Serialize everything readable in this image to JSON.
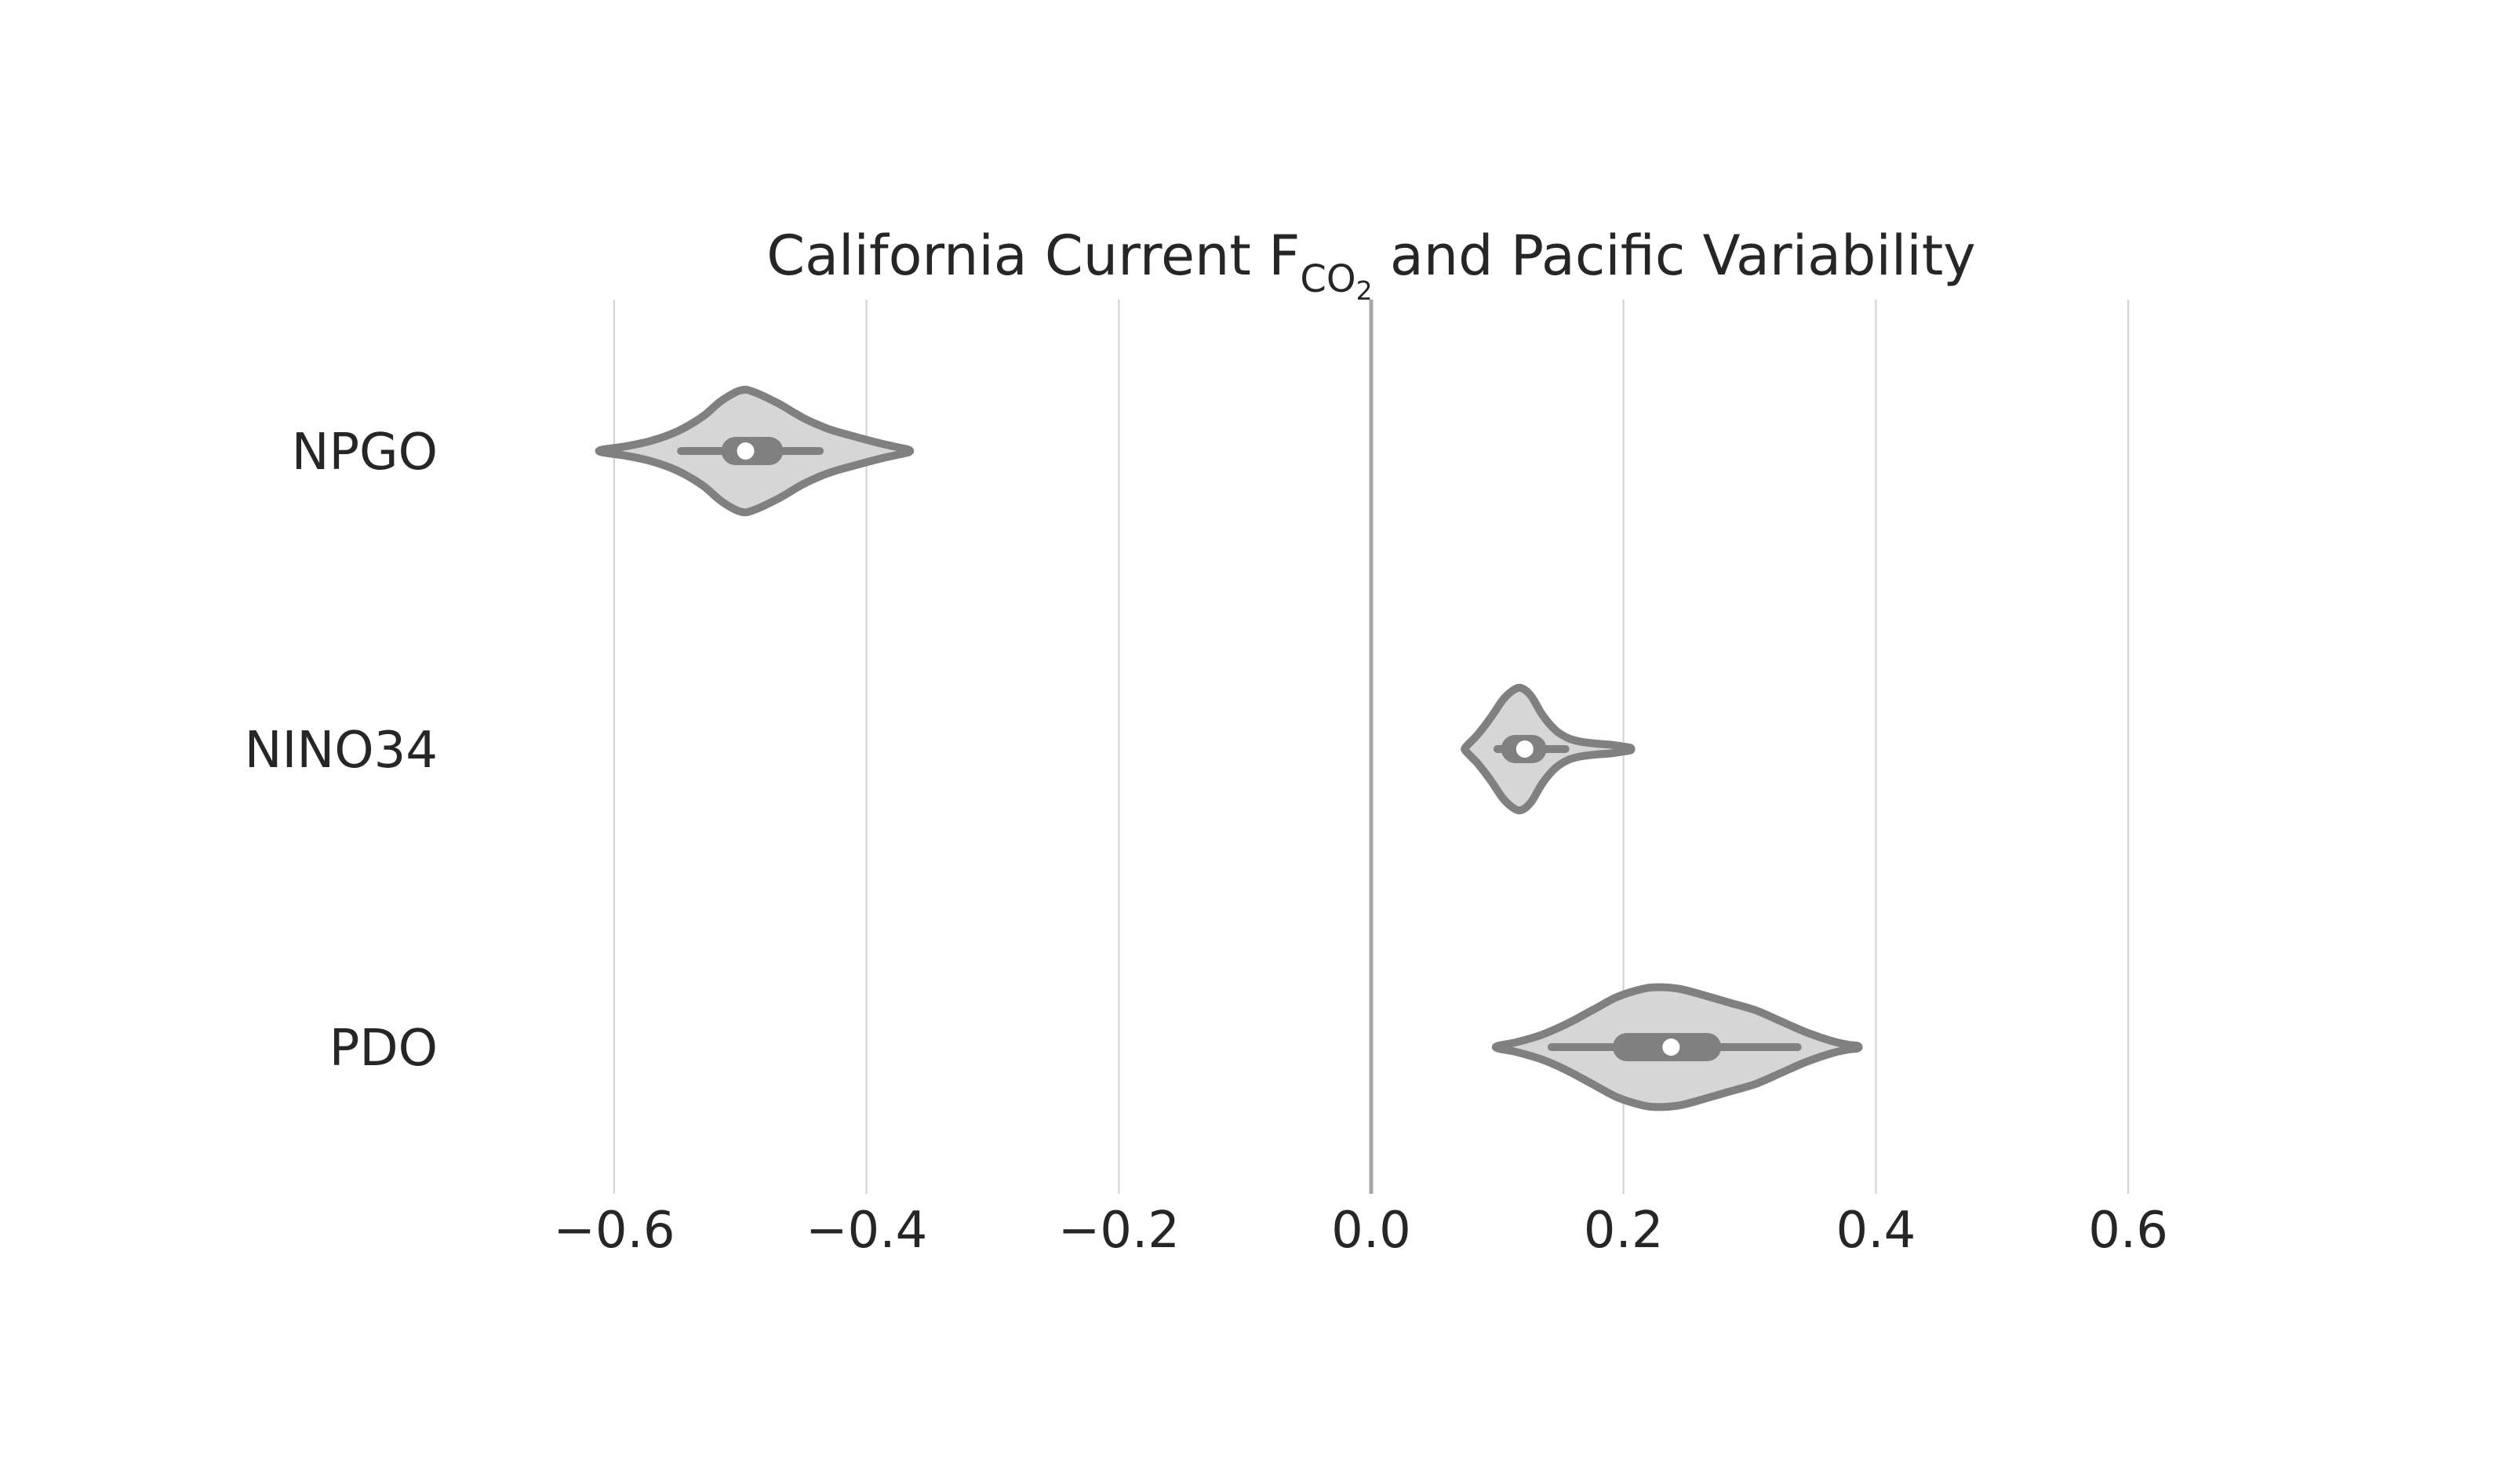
{
  "chart_data": {
    "type": "violin",
    "orientation": "horizontal",
    "title_parts": {
      "before": "California Current F",
      "subscript": "CO",
      "subsubscript": "2",
      "after": " and Pacific Variability"
    },
    "xlabel": "",
    "ylabel": "",
    "xlim": [
      -0.7,
      0.7
    ],
    "xticks": [
      -0.6,
      -0.4,
      -0.2,
      0.0,
      0.2,
      0.4,
      0.6
    ],
    "xtick_labels": [
      "−0.6",
      "−0.4",
      "−0.2",
      "0.0",
      "0.2",
      "0.4",
      "0.6"
    ],
    "grid": "vertical",
    "zero_line": 0.0,
    "colors": {
      "violin_fill": "#d6d6d6",
      "violin_edge": "#808080",
      "grid": "#d3d3d3",
      "zero_line": "#a6a6a6",
      "median_dot": "#ffffff",
      "text": "#262626"
    },
    "categories": [
      "NPGO",
      "NINO34",
      "PDO"
    ],
    "series": [
      {
        "category": "NPGO",
        "min": -0.6095,
        "max": -0.3665,
        "whisker_low": -0.547,
        "whisker_high": -0.437,
        "q1": -0.515,
        "median": -0.4958,
        "q3": -0.466,
        "max_density": 1.0,
        "density": [
          [
            -0.6095,
            0.02
          ],
          [
            -0.59,
            0.08
          ],
          [
            -0.57,
            0.17
          ],
          [
            -0.55,
            0.32
          ],
          [
            -0.53,
            0.56
          ],
          [
            -0.515,
            0.82
          ],
          [
            -0.5,
            0.99
          ],
          [
            -0.49,
            0.97
          ],
          [
            -0.47,
            0.78
          ],
          [
            -0.45,
            0.54
          ],
          [
            -0.43,
            0.36
          ],
          [
            -0.41,
            0.24
          ],
          [
            -0.39,
            0.13
          ],
          [
            -0.375,
            0.06
          ],
          [
            -0.3665,
            0.02
          ]
        ]
      },
      {
        "category": "NINO34",
        "min": 0.0745,
        "max": 0.2055,
        "whisker_low": 0.1,
        "whisker_high": 0.154,
        "q1": 0.103,
        "median": 0.1217,
        "q3": 0.139,
        "max_density": 1.0,
        "density": [
          [
            0.0745,
            0.02
          ],
          [
            0.078,
            0.1
          ],
          [
            0.085,
            0.25
          ],
          [
            0.095,
            0.52
          ],
          [
            0.105,
            0.82
          ],
          [
            0.114,
            0.98
          ],
          [
            0.12,
            0.99
          ],
          [
            0.127,
            0.86
          ],
          [
            0.136,
            0.55
          ],
          [
            0.146,
            0.31
          ],
          [
            0.156,
            0.18
          ],
          [
            0.166,
            0.12
          ],
          [
            0.178,
            0.09
          ],
          [
            0.19,
            0.07
          ],
          [
            0.2,
            0.04
          ],
          [
            0.2055,
            0.02
          ]
        ]
      },
      {
        "category": "PDO",
        "min": 0.1005,
        "max": 0.3855,
        "whisker_low": 0.143,
        "whisker_high": 0.338,
        "q1": 0.1915,
        "median": 0.2377,
        "q3": 0.2775,
        "max_density": 1.0,
        "density": [
          [
            0.1005,
            0.02
          ],
          [
            0.115,
            0.08
          ],
          [
            0.135,
            0.2
          ],
          [
            0.155,
            0.38
          ],
          [
            0.175,
            0.6
          ],
          [
            0.195,
            0.82
          ],
          [
            0.215,
            0.95
          ],
          [
            0.228,
            0.98
          ],
          [
            0.245,
            0.95
          ],
          [
            0.265,
            0.84
          ],
          [
            0.285,
            0.72
          ],
          [
            0.305,
            0.6
          ],
          [
            0.325,
            0.42
          ],
          [
            0.345,
            0.24
          ],
          [
            0.365,
            0.1
          ],
          [
            0.378,
            0.04
          ],
          [
            0.3855,
            0.02
          ]
        ]
      }
    ]
  }
}
